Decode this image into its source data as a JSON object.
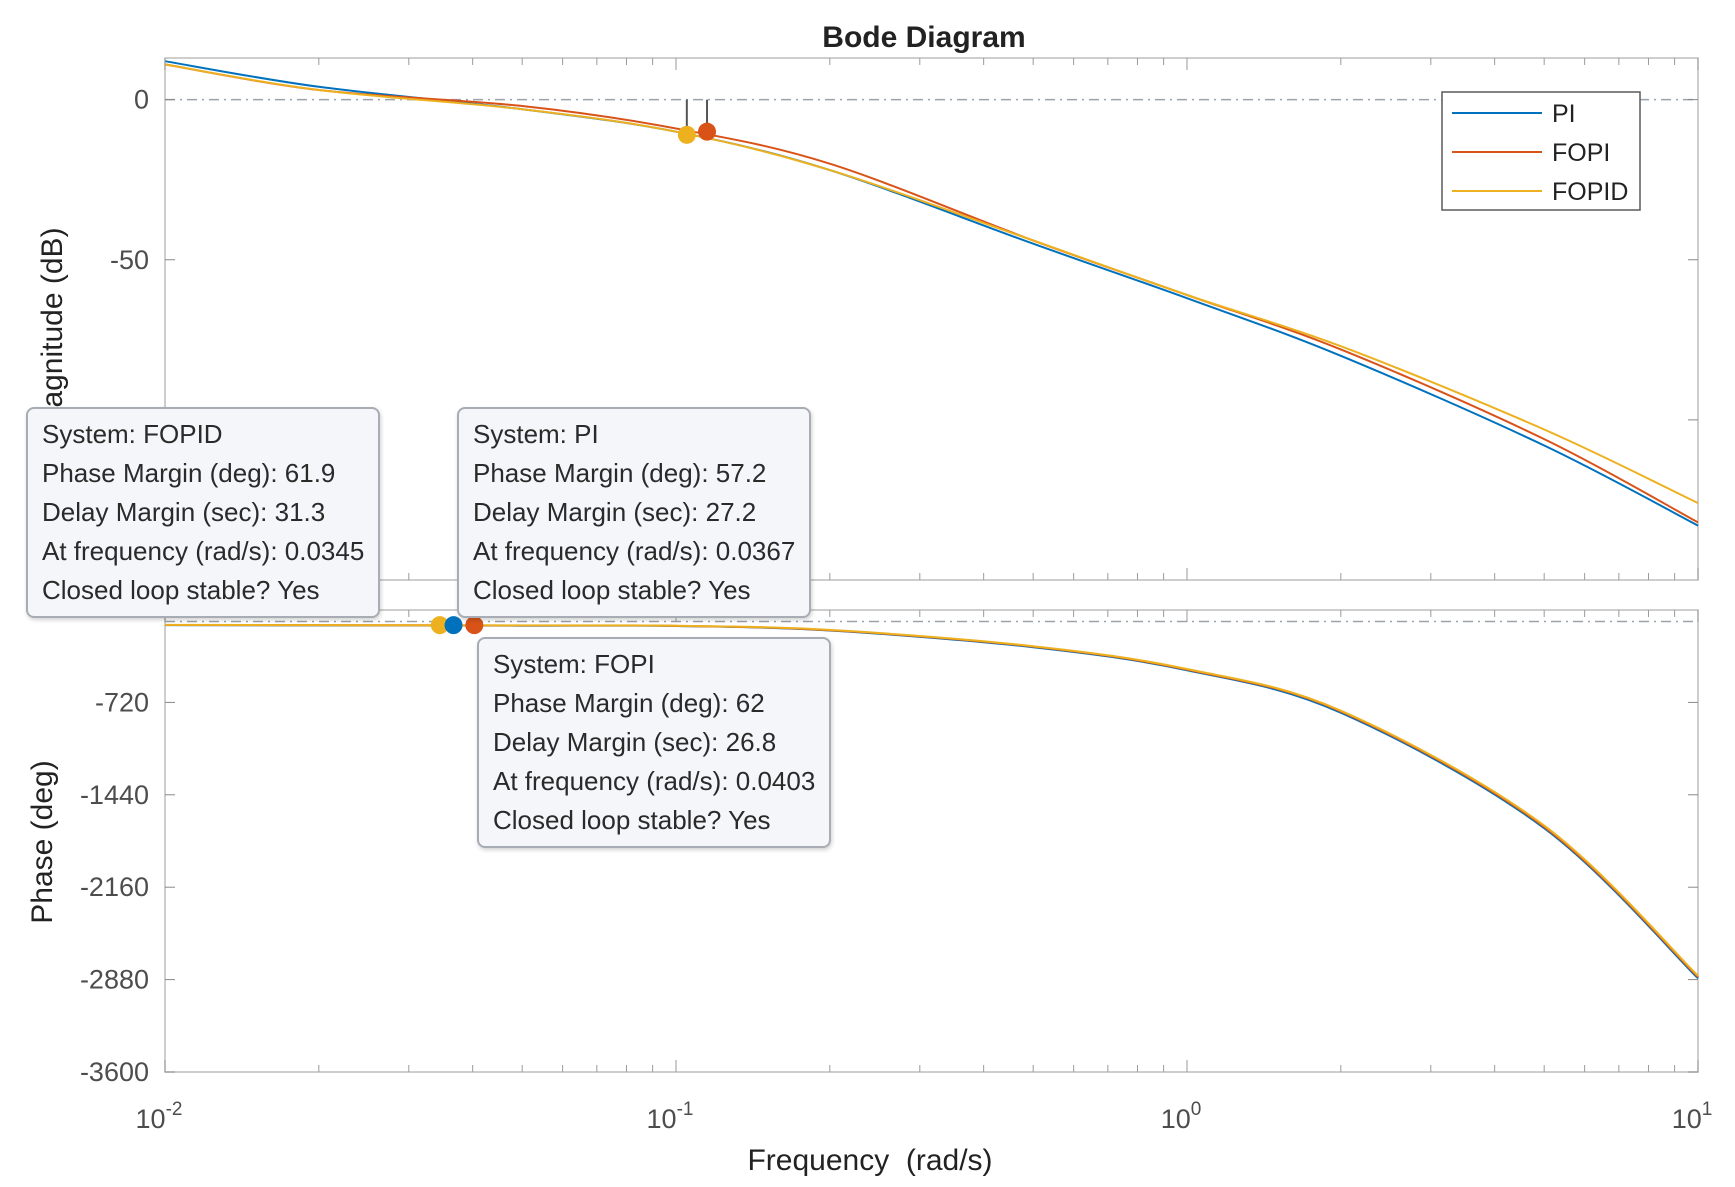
{
  "chart_data": {
    "type": "line",
    "title": "Bode Diagram",
    "xlabel": "Frequency  (rad/s)",
    "xscale": "log",
    "xlim": [
      0.01,
      10
    ],
    "xticks": [
      {
        "base": "10",
        "exp": "-2"
      },
      {
        "base": "10",
        "exp": "-1"
      },
      {
        "base": "10",
        "exp": "0"
      },
      {
        "base": "10",
        "exp": "1"
      }
    ],
    "grid": false,
    "legend_position": "top-right",
    "legend": [
      "PI",
      "FOPI",
      "FOPID"
    ],
    "colors": {
      "PI": "#0072bd",
      "FOPI": "#d95319",
      "FOPID": "#edb120"
    },
    "magnitude": {
      "ylabel": "Magnitude (dB)",
      "ylim": [
        -150,
        13
      ],
      "yticks": [
        0,
        -50
      ],
      "yticks_shown": [
        "0",
        "-50"
      ],
      "series": [
        {
          "name": "PI",
          "x": [
            0.01,
            0.02,
            0.05,
            0.1,
            0.2,
            0.5,
            1,
            2,
            5,
            10
          ],
          "y": [
            12,
            4,
            -3,
            -10,
            -22,
            -45,
            -62,
            -80,
            -108,
            -133
          ]
        },
        {
          "name": "FOPI",
          "x": [
            0.01,
            0.02,
            0.05,
            0.1,
            0.2,
            0.5,
            1,
            2,
            5,
            10
          ],
          "y": [
            11,
            3,
            -2,
            -9,
            -20,
            -44,
            -61,
            -78,
            -106,
            -132
          ]
        },
        {
          "name": "FOPID",
          "x": [
            0.01,
            0.02,
            0.05,
            0.1,
            0.2,
            0.5,
            1,
            2,
            5,
            10
          ],
          "y": [
            11,
            3,
            -3,
            -10,
            -22,
            -44,
            -61,
            -77,
            -103,
            -126
          ]
        }
      ]
    },
    "phase": {
      "ylabel": "Phase (deg)",
      "ylim": [
        -3600,
        0
      ],
      "yticks": [
        -720,
        -1440,
        -2160,
        -2880,
        -3600
      ],
      "series": [
        {
          "name": "PI",
          "x": [
            0.01,
            0.02,
            0.05,
            0.1,
            0.2,
            0.5,
            1,
            2,
            5,
            10
          ],
          "y": [
            -118,
            -120,
            -122,
            -125,
            -160,
            -290,
            -470,
            -800,
            -1700,
            -2870
          ]
        },
        {
          "name": "FOPI",
          "x": [
            0.01,
            0.02,
            0.05,
            0.1,
            0.2,
            0.5,
            1,
            2,
            5,
            10
          ],
          "y": [
            -117,
            -118,
            -121,
            -124,
            -158,
            -285,
            -465,
            -790,
            -1690,
            -2860
          ]
        },
        {
          "name": "FOPID",
          "x": [
            0.01,
            0.02,
            0.05,
            0.1,
            0.2,
            0.5,
            1,
            2,
            5,
            10
          ],
          "y": [
            -116,
            -118,
            -120,
            -123,
            -155,
            -282,
            -460,
            -785,
            -1680,
            -2850
          ]
        }
      ]
    },
    "crossover_markers": [
      {
        "series": "FOPID",
        "x": 0.105,
        "y": -11
      },
      {
        "series": "FOPI",
        "x": 0.115,
        "y": -10
      }
    ],
    "phase_margin_markers": [
      {
        "series": "FOPID",
        "x": 0.0345,
        "y": -118
      },
      {
        "series": "PI",
        "x": 0.0367,
        "y": -118
      },
      {
        "series": "FOPI",
        "x": 0.0403,
        "y": -118
      }
    ],
    "datatips": [
      {
        "id": "fopid",
        "lines": [
          "System: FOPID",
          "Phase Margin (deg): 61.9",
          "Delay Margin (sec): 31.3",
          "At frequency (rad/s): 0.0345",
          "Closed loop stable? Yes"
        ]
      },
      {
        "id": "pi",
        "lines": [
          "System: PI",
          "Phase Margin (deg): 57.2",
          "Delay Margin (sec): 27.2",
          "At frequency (rad/s): 0.0367",
          "Closed loop stable? Yes"
        ]
      },
      {
        "id": "fopi",
        "lines": [
          "System: FOPI",
          "Phase Margin (deg): 62",
          "Delay Margin (sec): 26.8",
          "At frequency (rad/s): 0.0403",
          "Closed loop stable? Yes"
        ]
      }
    ]
  }
}
